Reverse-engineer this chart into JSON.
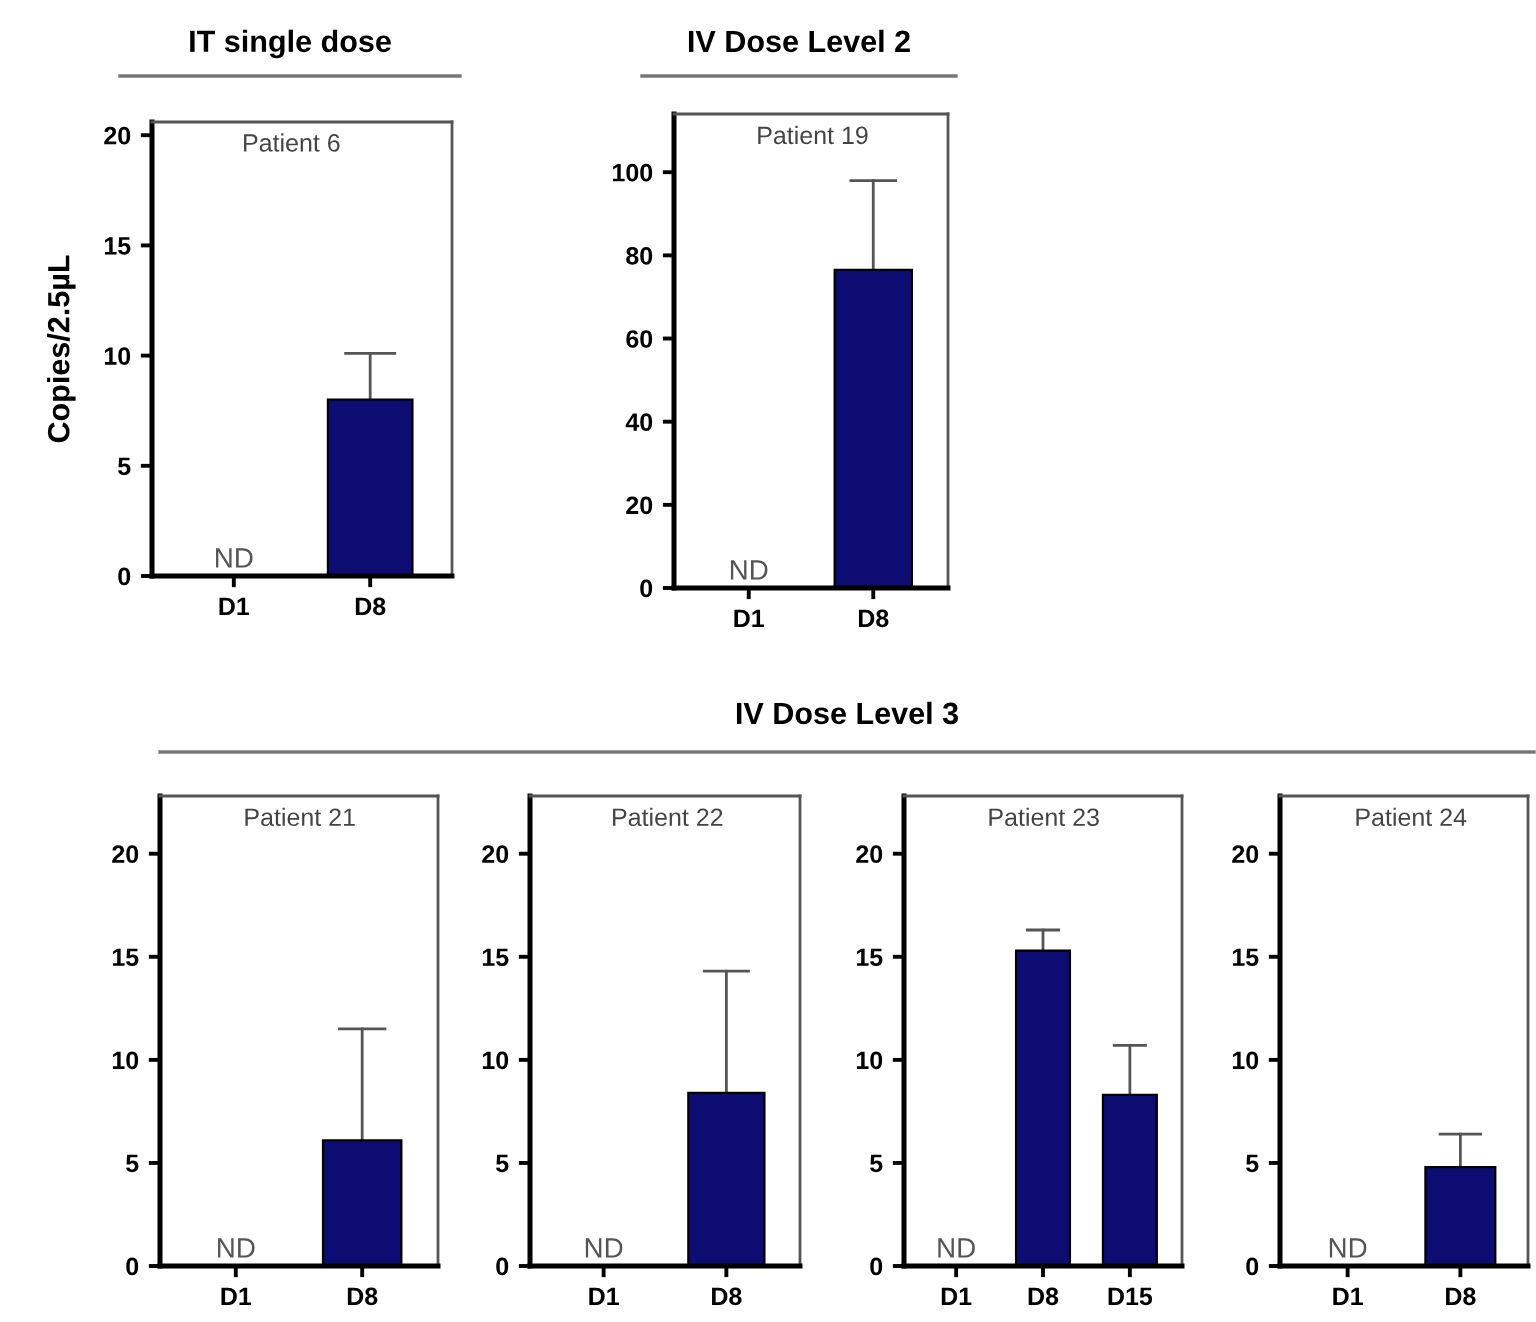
{
  "chart_data": [
    {
      "type": "bar",
      "title": "IT single dose",
      "ylabel": "Copies/2.5µL",
      "categories": [
        "D1",
        "D8"
      ],
      "values": [
        null,
        8.0
      ],
      "errors": [
        null,
        [
          8.0,
          10.1
        ]
      ],
      "color": "#0c0c72",
      "ylim": [
        0,
        20.6
      ],
      "yticks": [
        0,
        5,
        10,
        15,
        20
      ],
      "annotations": [
        "Patient 6",
        "ND"
      ]
    },
    {
      "type": "bar",
      "title": "IV Dose Level 2",
      "categories": [
        "D1",
        "D8"
      ],
      "values": [
        null,
        76.5
      ],
      "errors": [
        null,
        [
          76.5,
          98
        ]
      ],
      "color": "#0c0c72",
      "ylim": [
        0,
        114
      ],
      "yticks": [
        0,
        20,
        40,
        60,
        80,
        100
      ],
      "annotations": [
        "Patient 19",
        "ND"
      ]
    },
    {
      "type": "other",
      "title": "IV Dose Level 3"
    },
    {
      "type": "bar",
      "categories": [
        "D1",
        "D8"
      ],
      "values": [
        null,
        6.1
      ],
      "errors": [
        null,
        [
          6.1,
          11.5
        ]
      ],
      "color": "#0c0c72",
      "ylim": [
        0,
        22.8
      ],
      "yticks": [
        0,
        5,
        10,
        15,
        20
      ],
      "annotations": [
        "Patient 21",
        "ND"
      ]
    },
    {
      "type": "bar",
      "categories": [
        "D1",
        "D8"
      ],
      "values": [
        null,
        8.4
      ],
      "errors": [
        null,
        [
          8.4,
          14.3
        ]
      ],
      "color": "#0c0c72",
      "ylim": [
        0,
        22.8
      ],
      "yticks": [
        0,
        5,
        10,
        15,
        20
      ],
      "annotations": [
        "Patient 22",
        "ND"
      ]
    },
    {
      "type": "bar",
      "categories": [
        "D1",
        "D8",
        "D15"
      ],
      "values": [
        null,
        15.3,
        8.3
      ],
      "errors": [
        null,
        [
          15.3,
          16.3
        ],
        [
          8.3,
          10.7
        ]
      ],
      "color": "#0c0c72",
      "ylim": [
        0,
        22.8
      ],
      "yticks": [
        0,
        5,
        10,
        15,
        20
      ],
      "annotations": [
        "Patient 23",
        "ND"
      ]
    },
    {
      "type": "bar",
      "categories": [
        "D1",
        "D8"
      ],
      "values": [
        null,
        4.8
      ],
      "errors": [
        null,
        [
          4.8,
          6.4
        ]
      ],
      "color": "#0c0c72",
      "ylim": [
        0,
        22.8
      ],
      "yticks": [
        0,
        5,
        10,
        15,
        20
      ],
      "annotations": [
        "Patient 24",
        "ND"
      ]
    }
  ]
}
